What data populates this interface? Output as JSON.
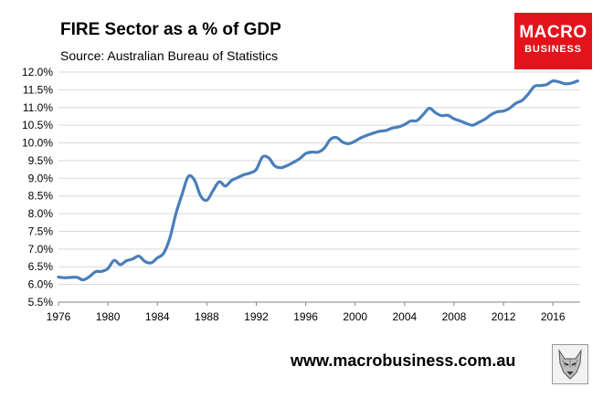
{
  "header": {
    "title": "FIRE Sector as a % of GDP",
    "subtitle": "Source: Australian Bureau of Statistics"
  },
  "logo": {
    "line1": "MACRO",
    "line2": "BUSINESS",
    "bg_color": "#e3131b"
  },
  "footer": {
    "url": "www.macrobusiness.com.au",
    "mascot_icon": "wolf-icon"
  },
  "chart_data": {
    "type": "line",
    "title": "FIRE Sector as a % of GDP",
    "subtitle": "Source: Australian Bureau of Statistics",
    "xlabel": "",
    "ylabel": "",
    "xlim": [
      1976,
      2018.2
    ],
    "ylim": [
      5.5,
      12.0
    ],
    "y_ticks": [
      "5.5%",
      "6.0%",
      "6.5%",
      "7.0%",
      "7.5%",
      "8.0%",
      "8.5%",
      "9.0%",
      "9.5%",
      "10.0%",
      "10.5%",
      "11.0%",
      "11.5%",
      "12.0%"
    ],
    "y_tick_values": [
      5.5,
      6.0,
      6.5,
      7.0,
      7.5,
      8.0,
      8.5,
      9.0,
      9.5,
      10.0,
      10.5,
      11.0,
      11.5,
      12.0
    ],
    "x_ticks": [
      "1976",
      "1980",
      "1984",
      "1988",
      "1992",
      "1996",
      "2000",
      "2004",
      "2008",
      "2012",
      "2016"
    ],
    "x_tick_values": [
      1976,
      1980,
      1984,
      1988,
      1992,
      1996,
      2000,
      2004,
      2008,
      2012,
      2016
    ],
    "grid": "horizontal",
    "series": [
      {
        "name": "FIRE Sector as a % of GDP",
        "color": "#4a7ebb",
        "x": [
          1976.0,
          1976.5,
          1977.0,
          1977.5,
          1978.0,
          1978.5,
          1979.0,
          1979.5,
          1980.0,
          1980.5,
          1981.0,
          1981.5,
          1982.0,
          1982.5,
          1983.0,
          1983.5,
          1984.0,
          1984.5,
          1985.0,
          1985.5,
          1986.0,
          1986.5,
          1987.0,
          1987.5,
          1988.0,
          1988.5,
          1989.0,
          1989.5,
          1990.0,
          1990.5,
          1991.0,
          1991.5,
          1992.0,
          1992.5,
          1993.0,
          1993.5,
          1994.0,
          1994.5,
          1995.0,
          1995.5,
          1996.0,
          1996.5,
          1997.0,
          1997.5,
          1998.0,
          1998.5,
          1999.0,
          1999.5,
          2000.0,
          2000.5,
          2001.0,
          2001.5,
          2002.0,
          2002.5,
          2003.0,
          2003.5,
          2004.0,
          2004.5,
          2005.0,
          2005.5,
          2006.0,
          2006.5,
          2007.0,
          2007.5,
          2008.0,
          2008.5,
          2009.0,
          2009.5,
          2010.0,
          2010.5,
          2011.0,
          2011.5,
          2012.0,
          2012.5,
          2013.0,
          2013.5,
          2014.0,
          2014.5,
          2015.0,
          2015.5,
          2016.0,
          2016.5,
          2017.0,
          2017.5,
          2018.0
        ],
        "values": [
          6.21,
          6.19,
          6.2,
          6.2,
          6.13,
          6.22,
          6.36,
          6.37,
          6.45,
          6.68,
          6.56,
          6.67,
          6.72,
          6.8,
          6.65,
          6.61,
          6.75,
          6.88,
          7.3,
          8.0,
          8.55,
          9.05,
          8.95,
          8.5,
          8.38,
          8.65,
          8.9,
          8.78,
          8.94,
          9.02,
          9.1,
          9.15,
          9.25,
          9.6,
          9.58,
          9.35,
          9.3,
          9.36,
          9.45,
          9.55,
          9.7,
          9.74,
          9.74,
          9.85,
          10.1,
          10.15,
          10.02,
          9.98,
          10.05,
          10.15,
          10.22,
          10.28,
          10.33,
          10.35,
          10.42,
          10.45,
          10.52,
          10.62,
          10.63,
          10.8,
          10.98,
          10.85,
          10.77,
          10.78,
          10.68,
          10.62,
          10.55,
          10.5,
          10.58,
          10.67,
          10.8,
          10.88,
          10.9,
          10.98,
          11.12,
          11.2,
          11.38,
          11.6,
          11.62,
          11.65,
          11.75,
          11.72,
          11.67,
          11.69,
          11.75
        ]
      }
    ]
  }
}
